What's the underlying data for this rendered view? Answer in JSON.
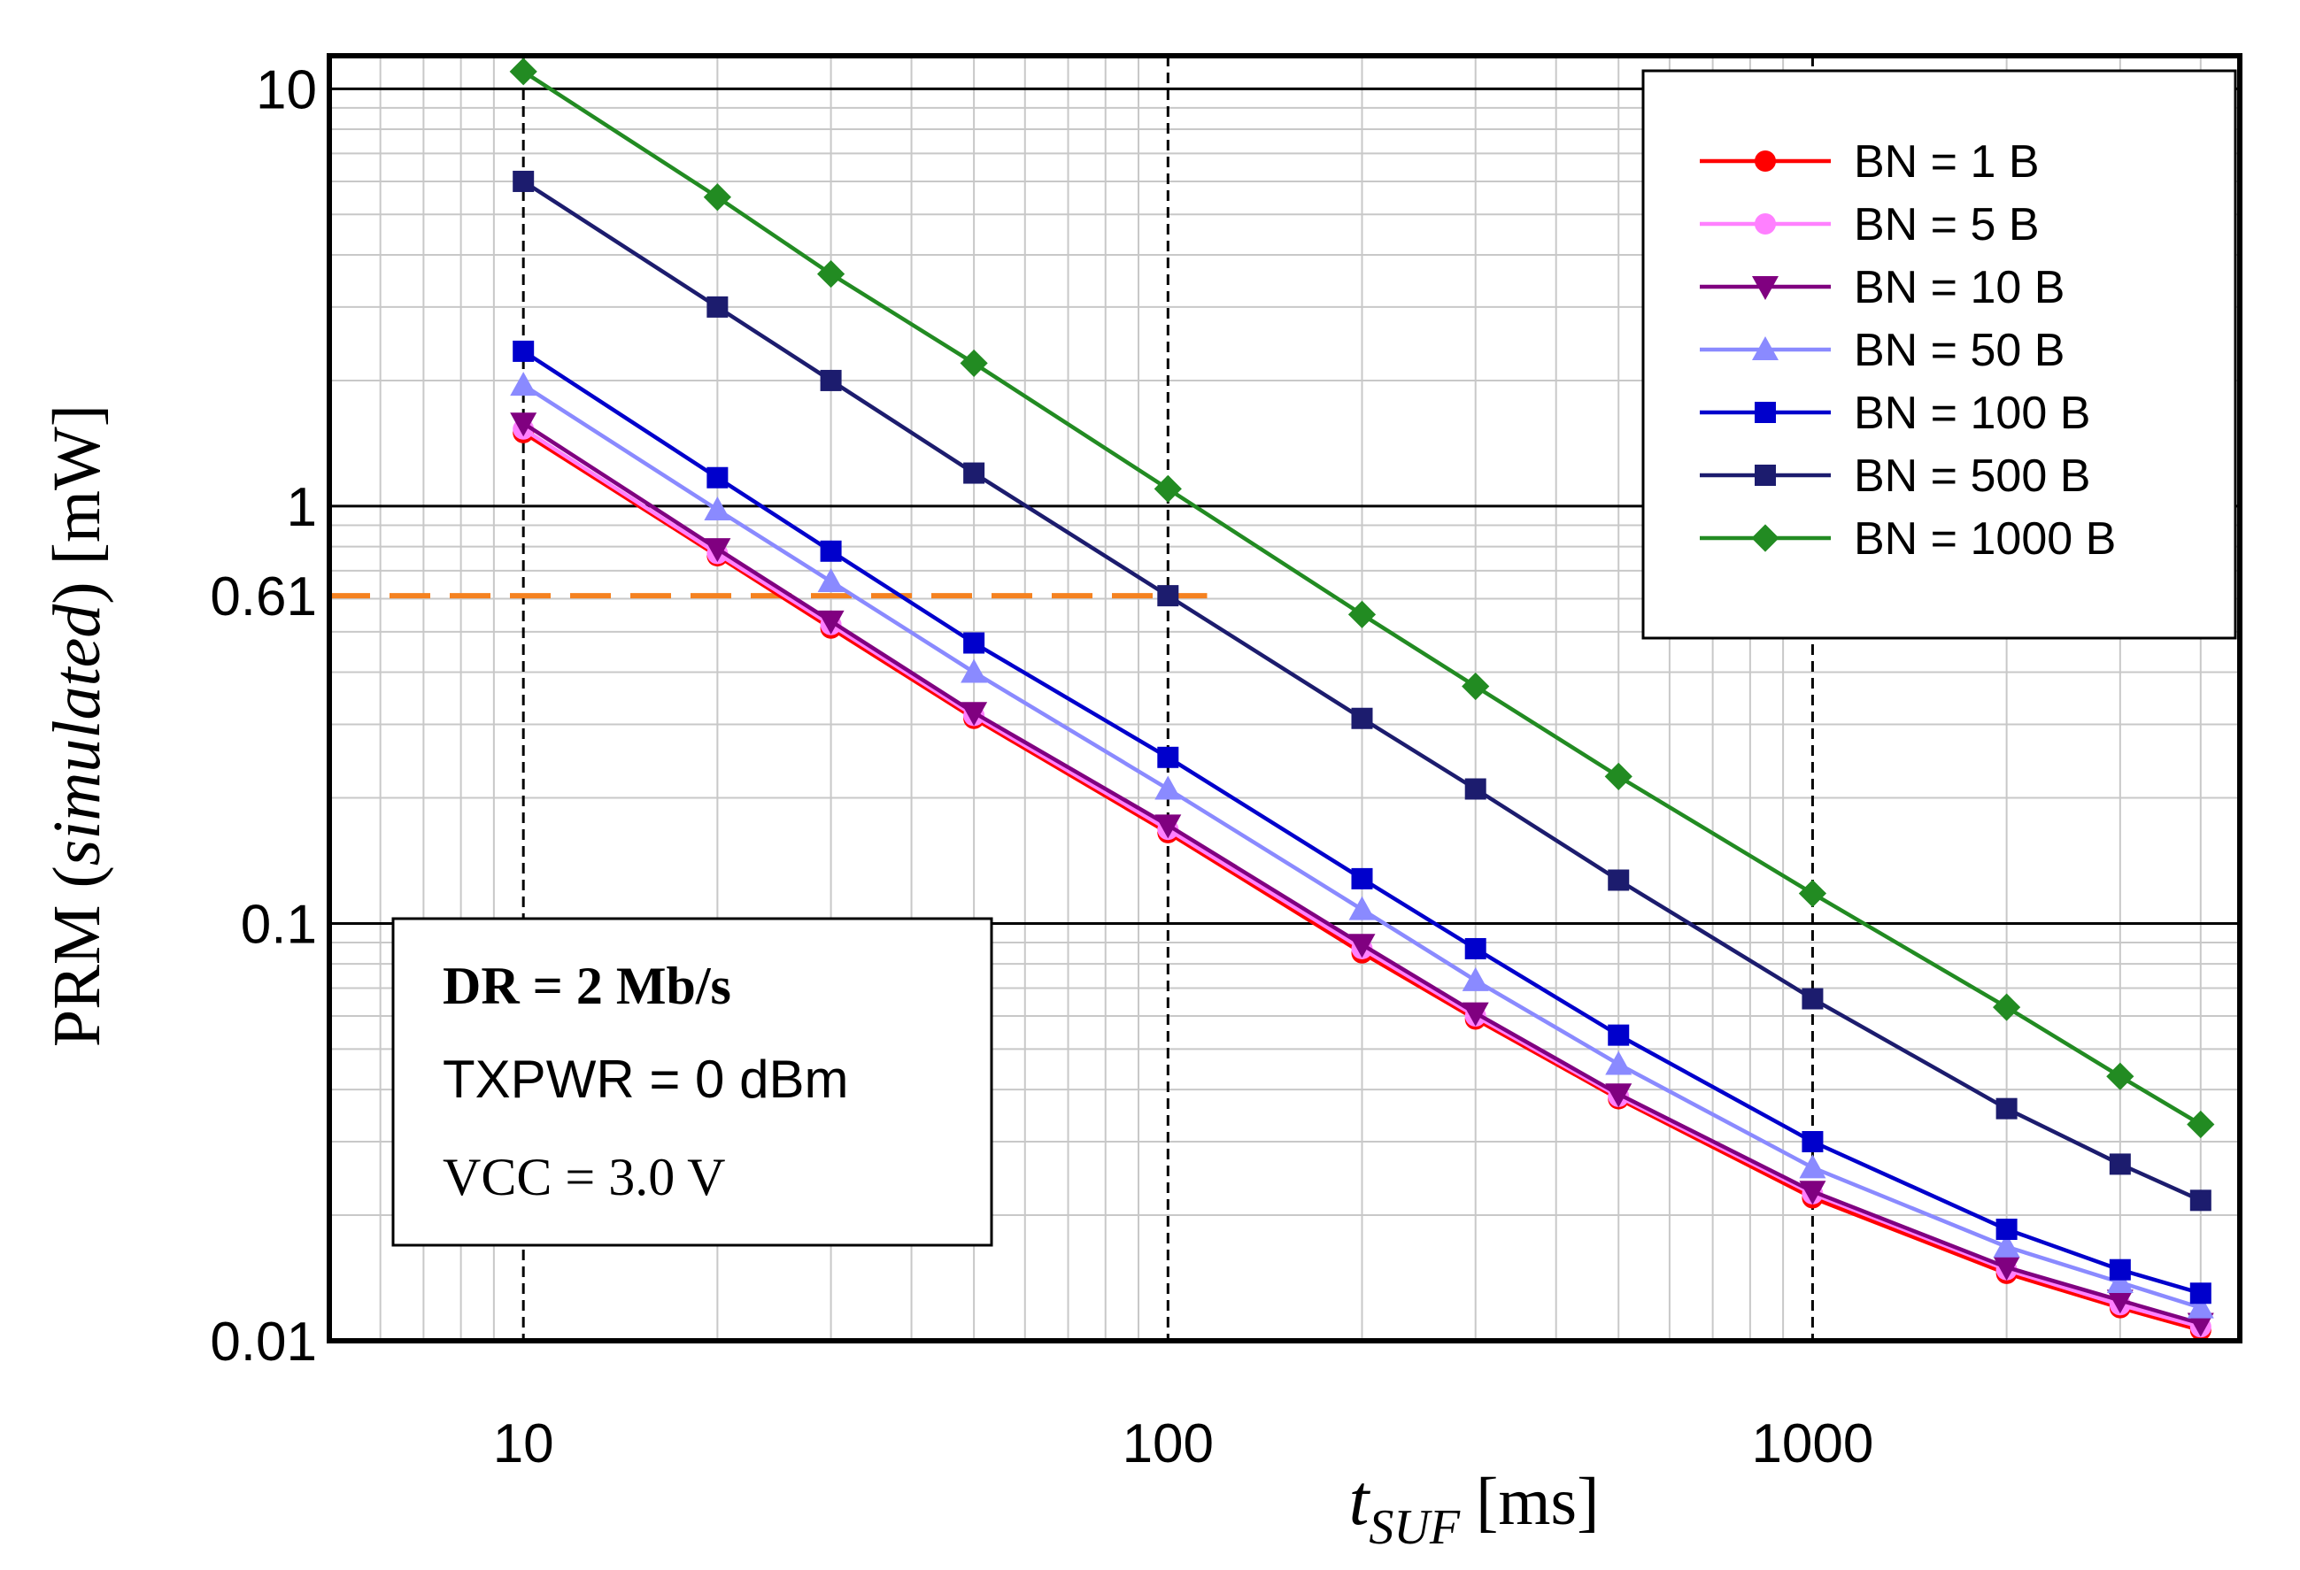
{
  "chart_data": {
    "type": "line",
    "scale": {
      "x": "log",
      "y": "log"
    },
    "xlabel": {
      "symbol": "t",
      "subscript": "SUF",
      "unit": "[ms]"
    },
    "ylabel": {
      "prefix": "PRM (",
      "italic": "simulated",
      "suffix": ") [mW]"
    },
    "xlim": [
      5,
      4600
    ],
    "ylim": [
      0.01,
      12
    ],
    "x_ticks": [
      {
        "value": 10,
        "label": "10"
      },
      {
        "value": 100,
        "label": "100"
      },
      {
        "value": 1000,
        "label": "1000"
      }
    ],
    "y_ticks": [
      {
        "value": 10,
        "label": "10"
      },
      {
        "value": 1,
        "label": "1"
      },
      {
        "value": 0.1,
        "label": "0.1"
      },
      {
        "value": 0.01,
        "label": "0.01"
      }
    ],
    "grid": true,
    "reference_line": {
      "value": 0.61,
      "label": "0.61",
      "x_end": 115,
      "color": "#f58220"
    },
    "x": [
      10,
      20,
      30,
      50,
      100,
      200,
      300,
      500,
      1000,
      2000,
      3000,
      4000
    ],
    "series": [
      {
        "name": "BN = 1 B",
        "color": "#ff0000",
        "marker": "circle",
        "values": [
          1.5,
          0.76,
          0.51,
          0.31,
          0.165,
          0.085,
          0.059,
          0.038,
          0.022,
          0.0145,
          0.012,
          0.0106
        ]
      },
      {
        "name": "BN = 5 B",
        "color": "#ff80ff",
        "marker": "circle",
        "values": [
          1.53,
          0.77,
          0.52,
          0.315,
          0.168,
          0.087,
          0.06,
          0.0385,
          0.0225,
          0.0148,
          0.0122,
          0.0108
        ]
      },
      {
        "name": "BN = 10 B",
        "color": "#800080",
        "marker": "triangle-down",
        "values": [
          1.58,
          0.79,
          0.53,
          0.32,
          0.172,
          0.089,
          0.061,
          0.039,
          0.0228,
          0.015,
          0.0125,
          0.011
        ]
      },
      {
        "name": "BN = 50 B",
        "color": "#8a8aff",
        "marker": "triangle-up",
        "values": [
          1.95,
          0.98,
          0.66,
          0.4,
          0.21,
          0.108,
          0.073,
          0.046,
          0.026,
          0.0168,
          0.0138,
          0.012
        ]
      },
      {
        "name": "BN = 100 B",
        "color": "#0000cc",
        "marker": "square",
        "values": [
          2.35,
          1.17,
          0.78,
          0.47,
          0.25,
          0.128,
          0.087,
          0.054,
          0.03,
          0.0185,
          0.0148,
          0.013
        ]
      },
      {
        "name": "BN = 500 B",
        "color": "#1c1c6e",
        "marker": "square",
        "values": [
          6.0,
          3.0,
          2.0,
          1.2,
          0.61,
          0.31,
          0.21,
          0.127,
          0.066,
          0.036,
          0.0265,
          0.0217
        ]
      },
      {
        "name": "BN = 1000 B",
        "color": "#228b22",
        "marker": "diamond",
        "values": [
          11.0,
          5.5,
          3.6,
          2.2,
          1.1,
          0.55,
          0.37,
          0.225,
          0.118,
          0.063,
          0.043,
          0.033
        ]
      }
    ],
    "legend_position": "top-right",
    "annotation": {
      "title": "DR = 2 Mb/s",
      "lines": [
        "TXPWR = 0 dBm",
        "VCC = 3.0 V"
      ],
      "position": "bottom-left"
    }
  }
}
